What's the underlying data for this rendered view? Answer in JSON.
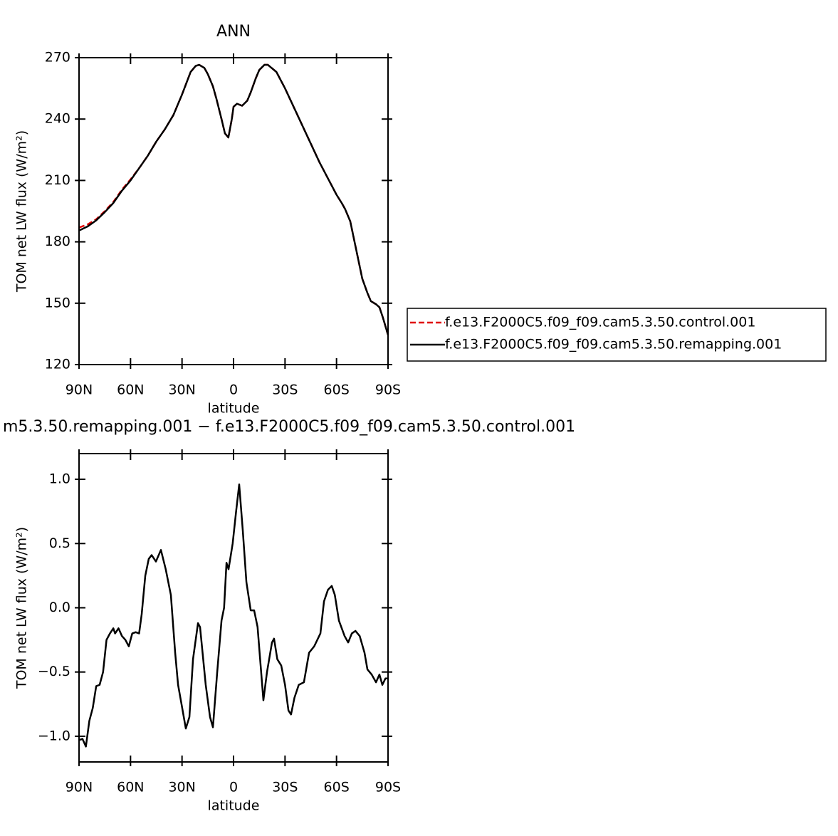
{
  "chart_data": [
    {
      "type": "line",
      "title": "ANN",
      "xlabel": "latitude",
      "ylabel": "TOM net LW flux (W/m²)",
      "x": [
        90,
        85,
        80,
        75,
        70,
        65,
        60,
        55,
        50,
        45,
        40,
        35,
        30,
        25,
        22,
        20,
        17,
        15,
        12,
        10,
        7,
        5,
        3,
        1,
        0,
        -2,
        -5,
        -8,
        -10,
        -13,
        -15,
        -18,
        -20,
        -25,
        -30,
        -35,
        -40,
        -45,
        -50,
        -55,
        -60,
        -63,
        -65,
        -68,
        -70,
        -73,
        -75,
        -78,
        -80,
        -83,
        -85,
        -87,
        -90
      ],
      "series": [
        {
          "name": "f.e13.F2000C5.f09_f09.cam5.3.50.control.001",
          "color": "#e00000",
          "linestyle": "dashed",
          "values": [
            187,
            188.5,
            191,
            195,
            199.5,
            205.5,
            210.5,
            216,
            222,
            229,
            235,
            242,
            252,
            263,
            266,
            266.5,
            265,
            262,
            256,
            250,
            240,
            233,
            231,
            240,
            246,
            247.5,
            246.5,
            249,
            253,
            260,
            264,
            266.5,
            266.5,
            263,
            255,
            246,
            237,
            228,
            219,
            211,
            203,
            199,
            196,
            190,
            182,
            170,
            162,
            155,
            151,
            149.5,
            148,
            143,
            134.5
          ]
        },
        {
          "name": "f.e13.F2000C5.f09_f09.cam5.3.50.remapping.001",
          "color": "#000000",
          "linestyle": "solid",
          "values": [
            185.5,
            187.5,
            190.5,
            194.5,
            199,
            205,
            210,
            216,
            222,
            229,
            235,
            242,
            252,
            263,
            266,
            266.5,
            265,
            262,
            256,
            250,
            240,
            233,
            231,
            240,
            246,
            247.5,
            246.5,
            249,
            253,
            260,
            264,
            266.5,
            266.5,
            263,
            255,
            246,
            237,
            228,
            219,
            211,
            203,
            199,
            196,
            190,
            182,
            170,
            162,
            155,
            151,
            149.5,
            148,
            143,
            134.5
          ]
        }
      ],
      "xlim": [
        90,
        -90
      ],
      "xticks": [
        {
          "value": 90,
          "label": "90N"
        },
        {
          "value": 60,
          "label": "60N"
        },
        {
          "value": 30,
          "label": "30N"
        },
        0,
        {
          "value": -30,
          "label": "30S"
        },
        {
          "value": -60,
          "label": "60S"
        },
        {
          "value": -90,
          "label": "90S"
        }
      ],
      "ylim": [
        120,
        270
      ],
      "yticks": [
        120,
        150,
        180,
        210,
        240,
        270
      ],
      "legend": "outside-right"
    },
    {
      "type": "line",
      "title": "m5.3.50.remapping.001 − f.e13.F2000C5.f09_f09.cam5.3.50.control.001",
      "xlabel": "latitude",
      "ylabel": "TOM net LW flux (W/m²)",
      "x": [
        90,
        88,
        86,
        84,
        82,
        80,
        78,
        76,
        74,
        72,
        70,
        69,
        67,
        65,
        63,
        61,
        59,
        57,
        55,
        53.5,
        51.4,
        49.4,
        47.7,
        45.2,
        42.3,
        39.5,
        36.5,
        34,
        32.3,
        29.9,
        27.8,
        25.7,
        23.6,
        20.7,
        19.5,
        16.2,
        13.7,
        12,
        9.5,
        7,
        5.5,
        4.1,
        2.9,
        0.5,
        -1.5,
        -3.3,
        -5.4,
        -7.5,
        -10,
        -12,
        -14,
        -17.4,
        -19.5,
        -22.4,
        -23.6,
        -25.5,
        -27.8,
        -30,
        -32,
        -33.5,
        -35.5,
        -38,
        -41,
        -44,
        -47,
        -50.6,
        -52.7,
        -55,
        -57.2,
        -59,
        -61.4,
        -64.7,
        -66.8,
        -68.9,
        -71,
        -73.5,
        -76.3,
        -78,
        -80.5,
        -83,
        -85,
        -86.7,
        -88.5,
        -90
      ],
      "values": [
        -1.03,
        -1.02,
        -1.08,
        -0.88,
        -0.78,
        -0.61,
        -0.6,
        -0.5,
        -0.25,
        -0.2,
        -0.16,
        -0.2,
        -0.16,
        -0.22,
        -0.25,
        -0.3,
        -0.2,
        -0.19,
        -0.2,
        -0.05,
        0.25,
        0.38,
        0.41,
        0.36,
        0.45,
        0.3,
        0.1,
        -0.35,
        -0.6,
        -0.78,
        -0.94,
        -0.85,
        -0.4,
        -0.12,
        -0.15,
        -0.6,
        -0.85,
        -0.93,
        -0.5,
        -0.1,
        0.0,
        0.35,
        0.3,
        0.5,
        0.75,
        0.96,
        0.6,
        0.2,
        -0.02,
        -0.02,
        -0.15,
        -0.72,
        -0.5,
        -0.27,
        -0.24,
        -0.4,
        -0.45,
        -0.6,
        -0.8,
        -0.83,
        -0.7,
        -0.6,
        -0.58,
        -0.35,
        -0.3,
        -0.2,
        0.05,
        0.14,
        0.17,
        0.1,
        -0.1,
        -0.22,
        -0.27,
        -0.2,
        -0.18,
        -0.22,
        -0.35,
        -0.48,
        -0.52,
        -0.58,
        -0.52,
        -0.6,
        -0.55,
        -0.55
      ],
      "color": "#000000",
      "xlim": [
        90,
        -90
      ],
      "xticks": [
        {
          "value": 90,
          "label": "90N"
        },
        {
          "value": 60,
          "label": "60N"
        },
        {
          "value": 30,
          "label": "30N"
        },
        0,
        {
          "value": -30,
          "label": "30S"
        },
        {
          "value": -60,
          "label": "60S"
        },
        {
          "value": -90,
          "label": "90S"
        }
      ],
      "ylim": [
        -1.2,
        1.2
      ],
      "yticks": [
        {
          "value": -1,
          "label": "−1.0"
        },
        {
          "value": -0.5,
          "label": "−0.5"
        },
        {
          "value": 0,
          "label": "0.0"
        },
        0.5,
        {
          "value": 1,
          "label": "1.0"
        }
      ]
    }
  ]
}
